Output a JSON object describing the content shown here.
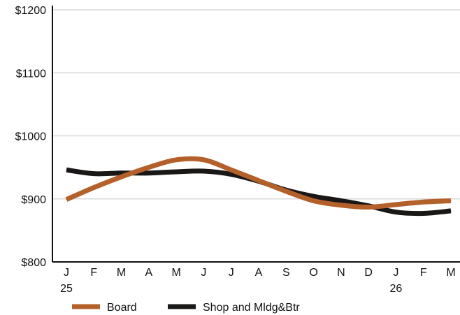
{
  "chart_data": {
    "type": "line",
    "title": "",
    "xlabel": "",
    "ylabel": "",
    "categories": [
      "J",
      "F",
      "M",
      "A",
      "M",
      "J",
      "J",
      "A",
      "S",
      "O",
      "N",
      "D",
      "J",
      "F",
      "M"
    ],
    "year_labels": [
      {
        "index": 0,
        "label": "25"
      },
      {
        "index": 12,
        "label": "26"
      }
    ],
    "y_ticks": [
      {
        "value": 800,
        "label": "$800"
      },
      {
        "value": 900,
        "label": "$900"
      },
      {
        "value": 1000,
        "label": "$1000"
      },
      {
        "value": 1100,
        "label": "$1100"
      },
      {
        "value": 1200,
        "label": "$1200"
      }
    ],
    "ylim": [
      800,
      1200
    ],
    "grid": true,
    "legend_position": "bottom",
    "series": [
      {
        "name": "Board",
        "color": "#b4602b",
        "values": [
          899,
          918,
          935,
          950,
          962,
          962,
          946,
          929,
          912,
          897,
          890,
          887,
          891,
          895,
          897
        ]
      },
      {
        "name": "Shop and Mldg&Btr",
        "color": "#1a1717",
        "values": [
          946,
          940,
          941,
          941,
          943,
          944,
          939,
          928,
          914,
          904,
          897,
          889,
          879,
          877,
          881
        ]
      }
    ]
  }
}
